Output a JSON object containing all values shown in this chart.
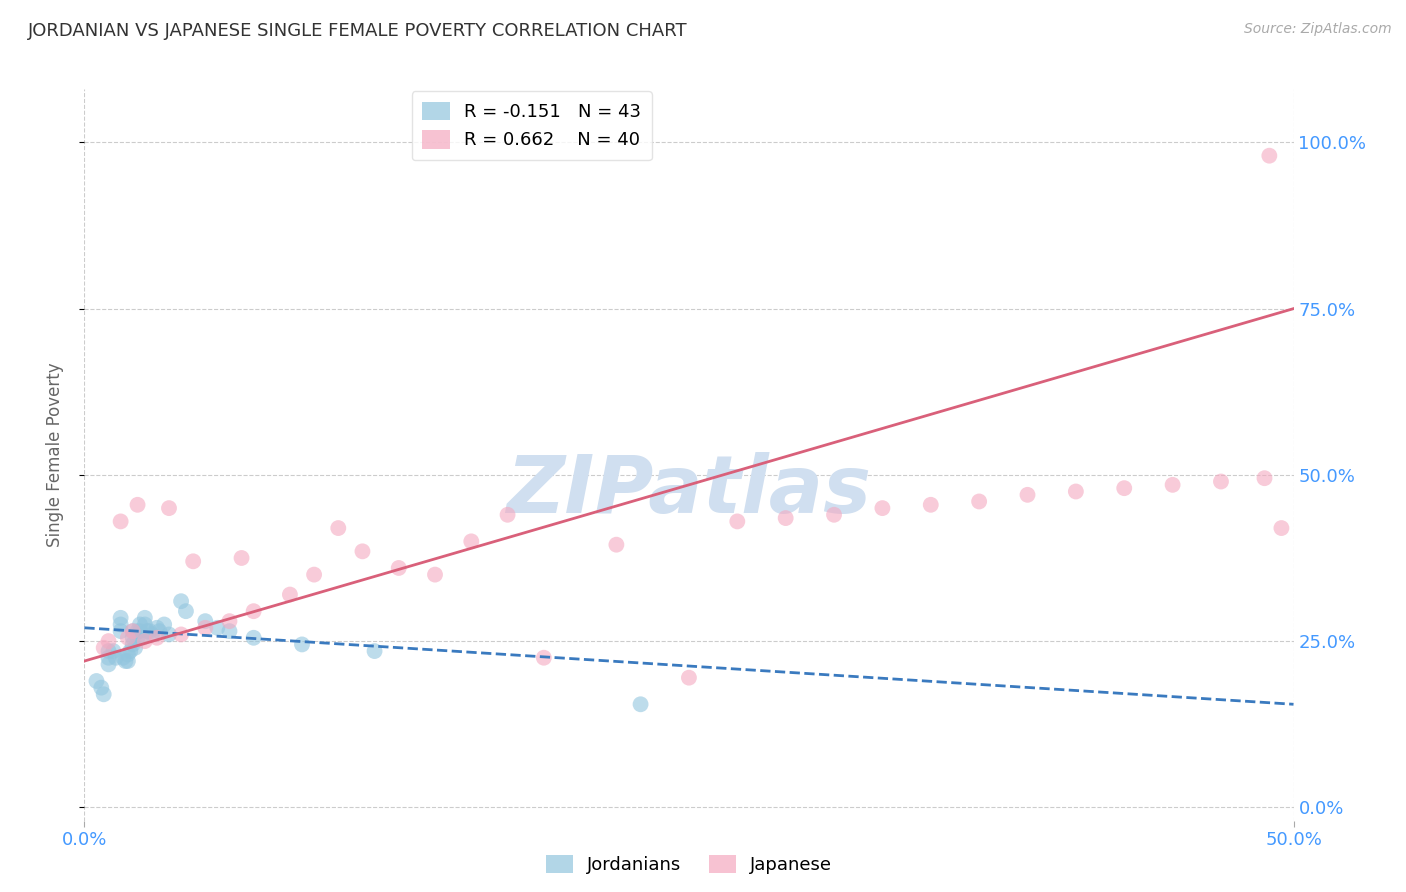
{
  "title": "JORDANIAN VS JAPANESE SINGLE FEMALE POVERTY CORRELATION CHART",
  "source": "Source: ZipAtlas.com",
  "ylabel": "Single Female Poverty",
  "xlim": [
    0.0,
    0.5
  ],
  "ylim": [
    -0.02,
    1.08
  ],
  "ytick_labels": [
    "0.0%",
    "25.0%",
    "50.0%",
    "75.0%",
    "100.0%"
  ],
  "ytick_values": [
    0.0,
    0.25,
    0.5,
    0.75,
    1.0
  ],
  "xtick_labels": [
    "0.0%",
    "50.0%"
  ],
  "xtick_values": [
    0.0,
    0.5
  ],
  "legend_entry1": "R = -0.151   N = 43",
  "legend_entry2": "R = 0.662    N = 40",
  "legend_color1": "#92c5de",
  "legend_color2": "#f4a9c0",
  "jordanians_color": "#92c5de",
  "japanese_color": "#f4a9c0",
  "trend_jordan_color": "#3a7abf",
  "trend_japan_color": "#d9607a",
  "watermark": "ZIPatlas",
  "watermark_color": "#d0dff0",
  "background_color": "#ffffff",
  "grid_color": "#cccccc",
  "title_color": "#333333",
  "axis_label_color": "#666666",
  "tick_label_color": "#4499ff",
  "source_color": "#aaaaaa",
  "jordanians_x": [
    0.005,
    0.007,
    0.008,
    0.01,
    0.01,
    0.01,
    0.012,
    0.013,
    0.015,
    0.015,
    0.015,
    0.016,
    0.017,
    0.018,
    0.018,
    0.019,
    0.02,
    0.02,
    0.02,
    0.021,
    0.022,
    0.022,
    0.023,
    0.023,
    0.024,
    0.025,
    0.025,
    0.026,
    0.027,
    0.028,
    0.03,
    0.031,
    0.033,
    0.035,
    0.04,
    0.042,
    0.05,
    0.055,
    0.06,
    0.07,
    0.09,
    0.12,
    0.23
  ],
  "jordanians_y": [
    0.19,
    0.18,
    0.17,
    0.235,
    0.225,
    0.215,
    0.235,
    0.225,
    0.285,
    0.275,
    0.265,
    0.225,
    0.22,
    0.23,
    0.22,
    0.235,
    0.265,
    0.255,
    0.245,
    0.24,
    0.265,
    0.255,
    0.275,
    0.265,
    0.255,
    0.285,
    0.275,
    0.265,
    0.265,
    0.26,
    0.27,
    0.265,
    0.275,
    0.26,
    0.31,
    0.295,
    0.28,
    0.27,
    0.265,
    0.255,
    0.245,
    0.235,
    0.155
  ],
  "japanese_x": [
    0.008,
    0.01,
    0.015,
    0.018,
    0.02,
    0.022,
    0.025,
    0.03,
    0.035,
    0.04,
    0.045,
    0.05,
    0.06,
    0.065,
    0.07,
    0.085,
    0.095,
    0.105,
    0.115,
    0.13,
    0.145,
    0.16,
    0.175,
    0.19,
    0.22,
    0.25,
    0.27,
    0.29,
    0.31,
    0.33,
    0.35,
    0.37,
    0.39,
    0.41,
    0.43,
    0.45,
    0.47,
    0.488,
    0.49,
    0.495
  ],
  "japanese_y": [
    0.24,
    0.25,
    0.43,
    0.255,
    0.265,
    0.455,
    0.25,
    0.255,
    0.45,
    0.26,
    0.37,
    0.27,
    0.28,
    0.375,
    0.295,
    0.32,
    0.35,
    0.42,
    0.385,
    0.36,
    0.35,
    0.4,
    0.44,
    0.225,
    0.395,
    0.195,
    0.43,
    0.435,
    0.44,
    0.45,
    0.455,
    0.46,
    0.47,
    0.475,
    0.48,
    0.485,
    0.49,
    0.495,
    0.98,
    0.42
  ],
  "jordan_trend_x0": 0.0,
  "jordan_trend_x1": 0.5,
  "jordan_trend_y0": 0.27,
  "jordan_trend_y1": 0.155,
  "japan_trend_x0": 0.0,
  "japan_trend_x1": 0.5,
  "japan_trend_y0": 0.22,
  "japan_trend_y1": 0.75
}
